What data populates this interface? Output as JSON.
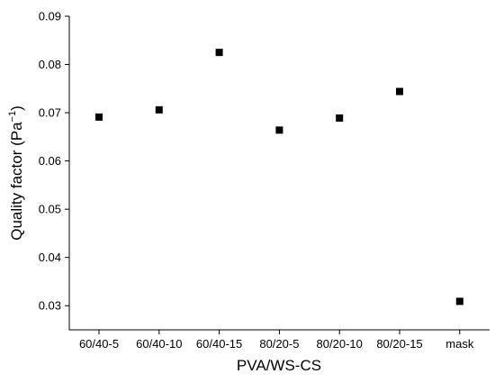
{
  "chart_data": {
    "type": "scatter",
    "title": "",
    "xlabel": "PVA/WS-CS",
    "ylabel": "Quality factor (Pa",
    "ylabel_sup": "−1",
    "ylabel_close": ")",
    "categories": [
      "60/40-5",
      "60/40-10",
      "60/40-15",
      "80/20-5",
      "80/20-10",
      "80/20-15",
      "mask"
    ],
    "series": [
      {
        "values": [
          0.0691,
          0.0706,
          0.0825,
          0.0664,
          0.0689,
          0.0744,
          0.0309
        ]
      }
    ],
    "ylim": [
      0.025,
      0.09
    ],
    "yticks": [
      "0.03",
      "0.04",
      "0.05",
      "0.06",
      "0.07",
      "0.08",
      "0.09"
    ],
    "marker": "square",
    "marker_color": "#000000",
    "grid": false,
    "legend": "none"
  }
}
